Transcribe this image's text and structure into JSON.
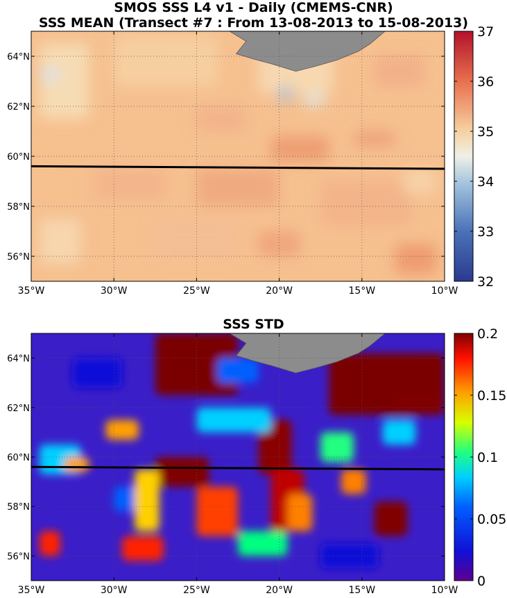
{
  "figure": {
    "title_line1": "SMOS SSS L4 v1 - Daily (CMEMS-CNR)",
    "title_line2": "SSS MEAN (Transect #7 : From 13-08-2013 to 15-08-2013)",
    "title_bottom": "SSS STD"
  },
  "chart_data": [
    {
      "type": "heatmap",
      "title": "SSS MEAN (Transect #7 : From 13-08-2013 to 15-08-2013)",
      "x_ticks": [
        -35,
        -30,
        -25,
        -20,
        -15,
        -10
      ],
      "x_tick_labels": [
        "35°W",
        "30°W",
        "25°W",
        "20°W",
        "15°W",
        "10°W"
      ],
      "y_ticks": [
        56,
        58,
        60,
        62,
        64
      ],
      "y_tick_labels": [
        "56°N",
        "58°N",
        "60°N",
        "62°N",
        "64°N"
      ],
      "xlim": [
        -35,
        -10
      ],
      "ylim": [
        55,
        65
      ],
      "grid": "dotted",
      "colorbar": {
        "range": [
          32,
          37
        ],
        "ticks": [
          32,
          33,
          34,
          35,
          36,
          37
        ],
        "tick_labels": [
          "32",
          "33",
          "34",
          "35",
          "36",
          "37"
        ],
        "colormap": "blue-white-red"
      },
      "transect": {
        "start": [
          -35,
          59.6
        ],
        "end": [
          -10,
          59.5
        ]
      },
      "land": "Iceland (grey), top edge near 16–24°W"
    },
    {
      "type": "heatmap",
      "title": "SSS STD",
      "x_ticks": [
        -35,
        -30,
        -25,
        -20,
        -15,
        -10
      ],
      "x_tick_labels": [
        "35°W",
        "30°W",
        "25°W",
        "20°W",
        "15°W",
        "10°W"
      ],
      "y_ticks": [
        56,
        58,
        60,
        62,
        64
      ],
      "y_tick_labels": [
        "56°N",
        "58°N",
        "60°N",
        "62°N",
        "64°N"
      ],
      "xlim": [
        -35,
        -10
      ],
      "ylim": [
        55,
        65
      ],
      "grid": "dotted",
      "colorbar": {
        "range": [
          0,
          0.2
        ],
        "ticks": [
          0,
          0.05,
          0.1,
          0.15,
          0.2
        ],
        "tick_labels": [
          "0",
          "0.05",
          "0.1",
          "0.15",
          "0.2"
        ],
        "colormap": "jet"
      },
      "transect": {
        "start": [
          -35,
          59.6
        ],
        "end": [
          -10,
          59.5
        ]
      },
      "land": "Iceland (grey), top edge near 16–24°W"
    }
  ],
  "colors": {
    "land": "#8c8c8c",
    "transect": "#000000",
    "grid": "#555555",
    "mean_base": "#f6c08f",
    "std_base": "#3a1ec8"
  }
}
